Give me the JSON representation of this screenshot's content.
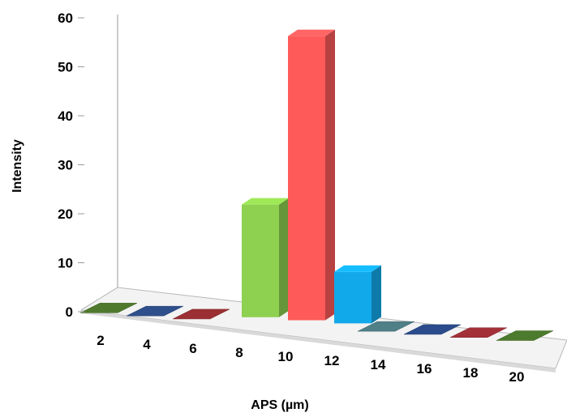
{
  "chart_data": {
    "type": "bar",
    "style": "3d-column",
    "categories": [
      "2",
      "4",
      "6",
      "8",
      "10",
      "12",
      "14",
      "16",
      "18",
      "20"
    ],
    "values": [
      0,
      0,
      0,
      23,
      58,
      10.5,
      0,
      0,
      0,
      0
    ],
    "bar_colors": [
      "#4f7a2d",
      "#2f4f8c",
      "#9b2f33",
      "#8ed04f",
      "#ff5a5a",
      "#12a9eb",
      "#4f7f87",
      "#2a4b8c",
      "#a33038",
      "#4d7b2d"
    ],
    "xlabel": "APS (µm)",
    "ylabel": "Intensity",
    "ylim": [
      0,
      60
    ],
    "yticks": [
      0,
      10,
      20,
      30,
      40,
      50,
      60
    ],
    "grid": false,
    "legend": "none"
  }
}
